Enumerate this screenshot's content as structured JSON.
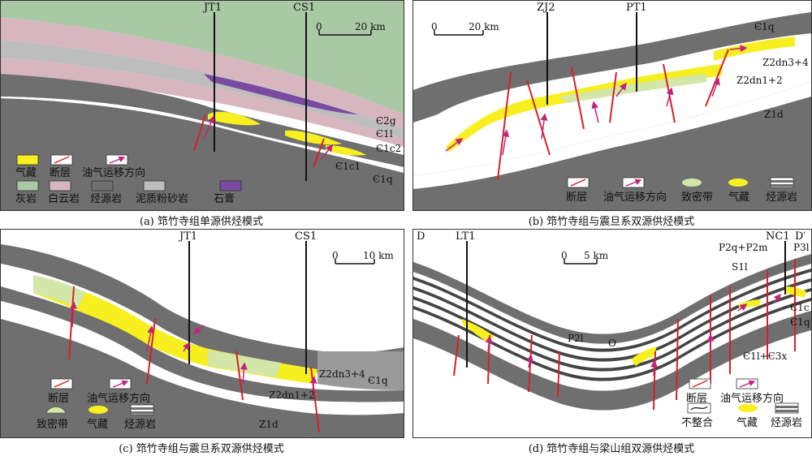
{
  "panels": [
    {
      "caption": "(a) 筇竹寺组单源供烃模式",
      "wells": [
        "JT1",
        "CS1"
      ],
      "scale": {
        "start": "0",
        "end": "20 km"
      },
      "strata": [
        "Є2g",
        "Є1l",
        "Є1c2",
        "Є1c1",
        "Є1q"
      ],
      "legend": [
        "气藏",
        "断层",
        "油气运移方向",
        "灰岩",
        "白云岩",
        "烃源岩",
        "泥质粉砂岩",
        "石膏"
      ]
    },
    {
      "caption": "(b) 筇竹寺组与震旦系双源供烃模式",
      "wells": [
        "ZJ2",
        "PT1"
      ],
      "scale": {
        "start": "0",
        "end": "20 km"
      },
      "strata": [
        "Є1q",
        "Z2dn3+4",
        "Z2dn1+2",
        "Z1d"
      ],
      "legend": [
        "断层",
        "油气运移方向",
        "致密带",
        "气藏",
        "烃源岩"
      ]
    },
    {
      "caption": "(c) 筇竹寺组与震旦系双源供烃模式",
      "wells": [
        "JT1",
        "CS1"
      ],
      "scale": {
        "start": "0",
        "end": "10 km"
      },
      "strata": [
        "Z2dn3+4",
        "Є1q",
        "Z2dn1+2",
        "Z1d"
      ],
      "legend": [
        "断层",
        "油气运移方向",
        "致密带",
        "气藏",
        "烃源岩"
      ]
    },
    {
      "caption": "(d) 筇竹寺组与梁山组双源供烃模式",
      "wells": [
        "LT1",
        "NC1"
      ],
      "ends": [
        "D",
        "D′"
      ],
      "scale": {
        "start": "0",
        "end": "5 km"
      },
      "strata": [
        "P2q+P2m",
        "P3l",
        "S1l",
        "P2l",
        "O",
        "Є1c",
        "Є1q",
        "Є1l+Є3x"
      ],
      "legend": [
        "断层",
        "油气运移方向",
        "不整合",
        "气藏",
        "烃源岩"
      ]
    }
  ],
  "colors": {
    "gas": "#f7ef1f",
    "fault": "#d6202a",
    "migration": "#c0237d",
    "limestone": "#a9c8a4",
    "dolomite": "#d7b6c0",
    "source": "#6f6f6f",
    "siltstone": "#bdbdbd",
    "gypsum": "#7a4aa3",
    "tight": "#d3e7a8"
  }
}
